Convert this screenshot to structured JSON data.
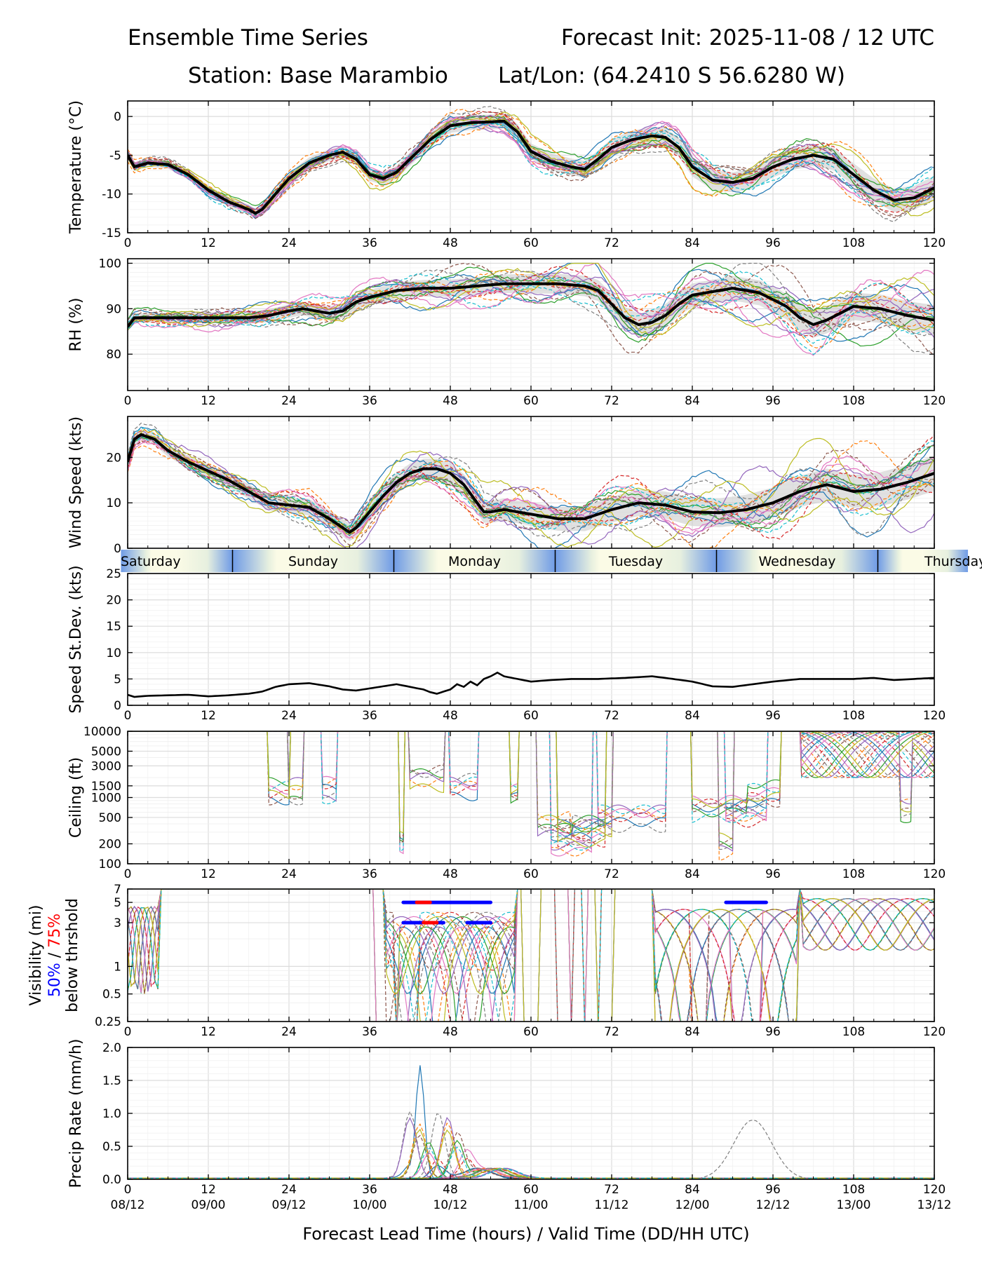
{
  "header": {
    "title_left": "Ensemble Time Series",
    "title_right": "Forecast Init: 2025-11-08 / 12 UTC",
    "station": "Station: Base Marambio",
    "latlon": "Lat/Lon: (64.2410 S 56.6280 W)"
  },
  "colors": {
    "members": [
      "#1f77b4",
      "#ff7f0e",
      "#2ca02c",
      "#d62728",
      "#9467bd",
      "#8c564b",
      "#e377c2",
      "#7f7f7f",
      "#bcbd22",
      "#17becf"
    ],
    "mean": "#000000",
    "spread": "#c8c8c8",
    "grid": "#e6e6e6",
    "day_light": "#fbfbe6",
    "day_dark": "#6f9be6",
    "vis50": "#0000ff",
    "vis75": "#ff0000"
  },
  "chart_data": [
    {
      "id": "temp",
      "type": "line",
      "ylabel": "Temperature (°C)",
      "ylim": [
        -15,
        2
      ],
      "yticks": [
        0,
        -5,
        -10,
        -15
      ],
      "xlim": [
        0,
        120
      ],
      "xticks": [
        0,
        12,
        24,
        36,
        48,
        60,
        72,
        84,
        96,
        108,
        120
      ],
      "members": 20,
      "spread": 1.2,
      "mean_x": [
        0,
        1,
        3,
        6,
        9,
        12,
        15,
        18,
        19,
        20,
        22,
        24,
        27,
        30,
        32,
        34,
        36,
        38,
        40,
        42,
        45,
        48,
        51,
        54,
        56,
        58,
        60,
        63,
        66,
        68,
        70,
        72,
        75,
        78,
        80,
        82,
        84,
        87,
        90,
        93,
        96,
        99,
        102,
        105,
        108,
        111,
        114,
        117,
        120
      ],
      "mean_y": [
        -5,
        -6.5,
        -6,
        -6.2,
        -7.5,
        -9.5,
        -11,
        -12,
        -12.5,
        -12,
        -10,
        -8,
        -6,
        -5,
        -4.6,
        -5.5,
        -7.5,
        -8,
        -7.2,
        -5.5,
        -3,
        -1.2,
        -0.8,
        -0.7,
        -0.6,
        -2,
        -4.5,
        -5.8,
        -6.5,
        -6.8,
        -5.5,
        -4,
        -3,
        -2.5,
        -2.7,
        -4,
        -6.5,
        -8.2,
        -8.5,
        -8,
        -6.5,
        -5.5,
        -5,
        -5.5,
        -7.5,
        -9.5,
        -10.8,
        -10.5,
        -9.2
      ]
    },
    {
      "id": "rh",
      "type": "line",
      "ylabel": "RH (%)",
      "ylim": [
        72,
        101
      ],
      "yticks": [
        100,
        90,
        80
      ],
      "xlim": [
        0,
        120
      ],
      "xticks": [
        0,
        12,
        24,
        36,
        48,
        60,
        72,
        84,
        96,
        108,
        120
      ],
      "members": 20,
      "spread": 2.5,
      "mean_x": [
        0,
        1,
        3,
        6,
        12,
        18,
        21,
        24,
        26,
        28,
        30,
        32,
        34,
        36,
        40,
        44,
        48,
        52,
        56,
        60,
        64,
        68,
        70,
        72,
        74,
        76,
        78,
        80,
        82,
        84,
        86,
        88,
        90,
        94,
        96,
        98,
        100,
        102,
        104,
        108,
        112,
        116,
        120
      ],
      "mean_y": [
        86,
        88,
        88,
        88,
        88,
        88,
        88.5,
        89.5,
        90,
        89.5,
        89,
        89.5,
        91.5,
        92.5,
        94,
        94.5,
        94.5,
        95,
        95.5,
        95.5,
        95.5,
        95,
        94,
        91,
        88,
        86.5,
        87,
        88.5,
        91,
        93,
        93.5,
        94,
        94.5,
        93.5,
        92,
        90.5,
        88,
        86.5,
        87.5,
        90.5,
        90,
        88.5,
        87.5
      ]
    },
    {
      "id": "wind",
      "type": "line",
      "ylabel": "Wind Speed (kts)",
      "ylim": [
        0,
        29
      ],
      "yticks": [
        0,
        10,
        20
      ],
      "xlim": [
        0,
        120
      ],
      "xticks": [
        0,
        12,
        24,
        36,
        48,
        60,
        72,
        84,
        96,
        108,
        120
      ],
      "members": 20,
      "spread": 3,
      "mean_x": [
        0,
        1,
        2,
        4,
        6,
        9,
        12,
        15,
        18,
        21,
        24,
        27,
        30,
        32,
        33,
        34,
        36,
        38,
        40,
        42,
        44,
        46,
        48,
        50,
        52,
        53,
        54,
        56,
        60,
        64,
        68,
        72,
        76,
        80,
        84,
        88,
        92,
        96,
        100,
        104,
        108,
        112,
        116,
        120
      ],
      "mean_y": [
        19,
        24,
        25,
        24,
        21.5,
        19,
        17,
        15,
        12.5,
        10,
        9.5,
        9,
        6.5,
        4.5,
        3.5,
        4.5,
        8,
        11.5,
        14.5,
        16.5,
        17.5,
        17.5,
        16.5,
        14,
        10,
        8,
        8,
        8.5,
        7.5,
        6.5,
        6.5,
        8.5,
        10,
        9.5,
        8,
        7.8,
        8.5,
        10,
        12.5,
        14,
        12.5,
        13,
        14.5,
        16.5
      ]
    },
    {
      "id": "sdev",
      "type": "line",
      "ylabel": "Speed St.Dev. (kts)",
      "ylim": [
        0,
        25
      ],
      "yticks": [
        0,
        5,
        10,
        15,
        20,
        25
      ],
      "xlim": [
        0,
        120
      ],
      "xticks": [
        0,
        12,
        24,
        36,
        48,
        60,
        72,
        84,
        96,
        108,
        120
      ],
      "members": 0,
      "mean_x": [
        0,
        1,
        3,
        6,
        9,
        12,
        15,
        18,
        20,
        22,
        24,
        27,
        30,
        32,
        34,
        36,
        38,
        40,
        42,
        44,
        45,
        46,
        48,
        49,
        50,
        51,
        52,
        53,
        54,
        55,
        56,
        58,
        60,
        63,
        66,
        70,
        74,
        78,
        80,
        84,
        87,
        90,
        93,
        96,
        100,
        104,
        108,
        111,
        114,
        117,
        120
      ],
      "mean_y": [
        2,
        1.6,
        1.8,
        1.9,
        2,
        1.7,
        1.9,
        2.2,
        2.6,
        3.5,
        4,
        4.2,
        3.6,
        3,
        2.8,
        3.2,
        3.6,
        4,
        3.5,
        3,
        2.5,
        2.2,
        3,
        4,
        3.5,
        4.5,
        3.8,
        5,
        5.5,
        6.2,
        5.5,
        5,
        4.5,
        4.8,
        5,
        5,
        5.2,
        5.5,
        5.2,
        4.5,
        3.6,
        3.5,
        4,
        4.5,
        5,
        5,
        5,
        5.2,
        4.8,
        5,
        5.2
      ]
    },
    {
      "id": "ceiling",
      "type": "line",
      "ylabel": "Ceiling (ft)",
      "scale": "log",
      "ylim": [
        100,
        10000
      ],
      "yticks": [
        10000,
        5000,
        3000,
        1500,
        1000,
        500,
        200,
        100
      ],
      "ytick_labels": [
        "10000",
        "5000",
        "3000",
        "1500",
        "1000",
        "500",
        "200",
        "100"
      ],
      "xlim": [
        0,
        120
      ],
      "xticks": [
        0,
        12,
        24,
        36,
        48,
        60,
        72,
        84,
        96,
        108,
        120
      ],
      "members": 20
    },
    {
      "id": "vis",
      "type": "line",
      "ylabel": "Visibility (mi)",
      "ylabel2": "below thrshold",
      "ylabel_50": "50%",
      "ylabel_75": "75%",
      "ylabel_sep": " / ",
      "scale": "log",
      "ylim": [
        0.25,
        7
      ],
      "yticks": [
        7,
        5,
        3,
        1,
        0.5,
        0.25
      ],
      "ytick_labels": [
        "7",
        "5",
        "3",
        "1",
        "0.5",
        "0.25"
      ],
      "xlim": [
        0,
        120
      ],
      "xticks": [
        0,
        12,
        24,
        36,
        48,
        60,
        72,
        84,
        96,
        108,
        120
      ],
      "members": 20,
      "threshold_bars": [
        {
          "level": 5,
          "color": "blue",
          "start": 41,
          "end": 54
        },
        {
          "level": 5,
          "color": "red",
          "start": 43,
          "end": 45
        },
        {
          "level": 3,
          "color": "blue",
          "start": 41,
          "end": 47
        },
        {
          "level": 3,
          "color": "red",
          "start": 44,
          "end": 46
        },
        {
          "level": 3,
          "color": "blue",
          "start": 50.5,
          "end": 54
        },
        {
          "level": 5,
          "color": "blue",
          "start": 89,
          "end": 95
        }
      ]
    },
    {
      "id": "precip",
      "type": "line",
      "ylabel": "Precip Rate (mm/h)",
      "ylim": [
        0,
        2
      ],
      "yticks": [
        0,
        0.5,
        1.0,
        1.5,
        2.0
      ],
      "ytick_labels": [
        "0.0",
        "0.5",
        "1.0",
        "1.5",
        "2.0"
      ],
      "xlim": [
        0,
        120
      ],
      "xticks": [
        0,
        12,
        24,
        36,
        48,
        60,
        72,
        84,
        96,
        108,
        120
      ],
      "members": 20,
      "peak_x": 43.5,
      "peak_y": 1.73,
      "secondary_x": 93,
      "secondary_y": 0.9
    }
  ],
  "day_band": {
    "labels": [
      "Saturday",
      "Sunday",
      "Monday",
      "Tuesday",
      "Wednesday",
      "Thursday"
    ],
    "boundaries_hours": [
      -1,
      15.6,
      39.6,
      63.6,
      87.6,
      111.6,
      125
    ]
  },
  "x_axis": {
    "valid_times": [
      "08/12",
      "09/00",
      "09/12",
      "10/00",
      "10/12",
      "11/00",
      "11/12",
      "12/00",
      "12/12",
      "13/00",
      "13/12"
    ],
    "xlabel": "Forecast Lead Time (hours) / Valid Time (DD/HH UTC)"
  }
}
